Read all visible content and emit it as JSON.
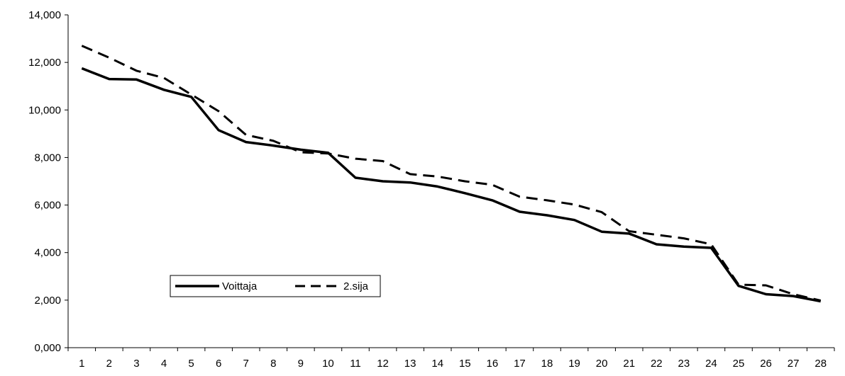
{
  "chart_data": {
    "type": "line",
    "title": "",
    "xlabel": "",
    "ylabel": "",
    "x": [
      1,
      2,
      3,
      4,
      5,
      6,
      7,
      8,
      9,
      10,
      11,
      12,
      13,
      14,
      15,
      16,
      17,
      18,
      19,
      20,
      21,
      22,
      23,
      24,
      25,
      26,
      27,
      28
    ],
    "x_tick_labels": [
      "1",
      "2",
      "3",
      "4",
      "5",
      "6",
      "7",
      "8",
      "9",
      "10",
      "11",
      "12",
      "13",
      "14",
      "15",
      "16",
      "17",
      "18",
      "19",
      "20",
      "21",
      "22",
      "23",
      "24",
      "25",
      "26",
      "27",
      "28"
    ],
    "ylim": [
      0,
      14
    ],
    "y_ticks": [
      0,
      2,
      4,
      6,
      8,
      10,
      12,
      14
    ],
    "y_tick_labels": [
      "0,000",
      "2,000",
      "4,000",
      "6,000",
      "8,000",
      "10,000",
      "12,000",
      "14,000"
    ],
    "grid": false,
    "legend_position": "lower-left",
    "series": [
      {
        "name": "Voittaja",
        "style": "solid",
        "color": "#000000",
        "values": [
          11.75,
          11.3,
          11.28,
          10.85,
          10.55,
          9.15,
          8.65,
          8.5,
          8.33,
          8.2,
          7.15,
          7.0,
          6.95,
          6.78,
          6.5,
          6.2,
          5.72,
          5.57,
          5.37,
          4.88,
          4.8,
          4.35,
          4.25,
          4.2,
          2.6,
          2.25,
          2.17,
          1.95
        ]
      },
      {
        "name": "2.sija",
        "style": "dashed",
        "color": "#000000",
        "values": [
          12.7,
          12.2,
          11.65,
          11.35,
          10.65,
          9.95,
          8.95,
          8.7,
          8.22,
          8.17,
          7.95,
          7.85,
          7.3,
          7.2,
          7.0,
          6.85,
          6.35,
          6.2,
          6.02,
          5.7,
          4.9,
          4.75,
          4.6,
          4.35,
          2.65,
          2.62,
          2.25,
          1.98
        ]
      }
    ]
  }
}
